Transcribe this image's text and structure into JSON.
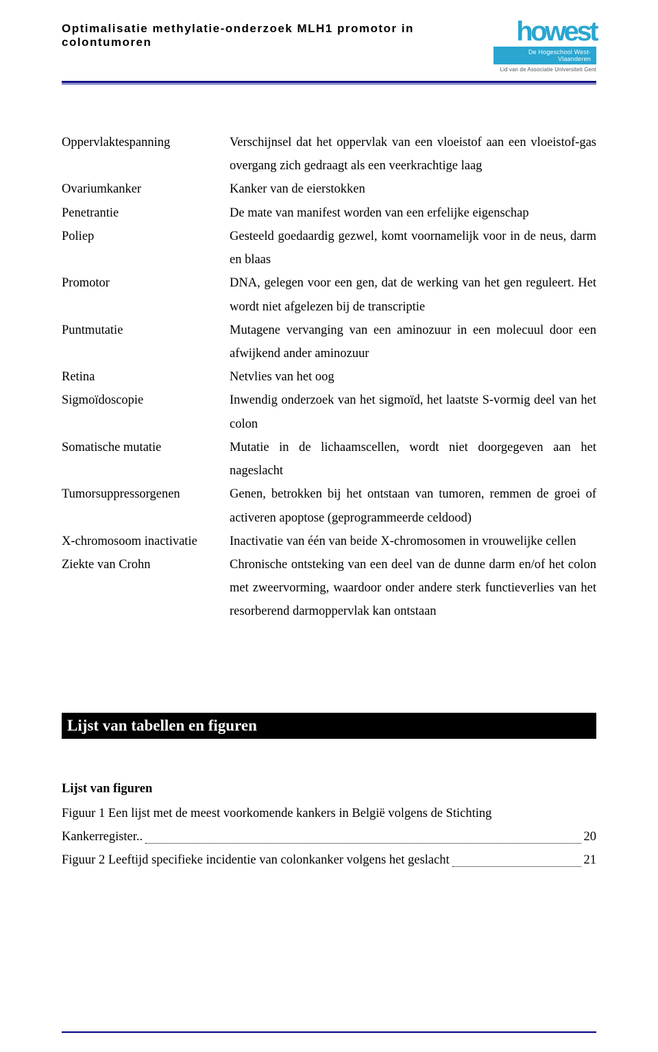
{
  "colors": {
    "logo_blue": "#2aa6d0",
    "rule_navy": "#000080",
    "text": "#000000",
    "bg": "#ffffff",
    "section_bg": "#000000",
    "section_fg": "#ffffff"
  },
  "header": {
    "title": "Optimalisatie methylatie-onderzoek MLH1 promotor in colontumoren",
    "logo_name": "howest",
    "logo_bar": "De Hogeschool West-Vlaanderen",
    "logo_sub": "Lid van de Associatie Universiteit Gent"
  },
  "glossary": [
    {
      "term": "Oppervlaktespanning",
      "def": "Verschijnsel dat het oppervlak van een vloeistof aan een vloeistof-gas overgang zich gedraagt als een veerkrachtige laag"
    },
    {
      "term": "Ovariumkanker",
      "def": "Kanker van de eierstokken"
    },
    {
      "term": "Penetrantie",
      "def": "De mate van manifest worden van een erfelijke eigenschap"
    },
    {
      "term": "Poliep",
      "def": "Gesteeld goedaardig gezwel, komt voornamelijk voor in de neus, darm en blaas"
    },
    {
      "term": "Promotor",
      "def": "DNA, gelegen voor een gen, dat de werking van het gen reguleert. Het wordt niet afgelezen bij de transcriptie"
    },
    {
      "term": "Puntmutatie",
      "def": "Mutagene vervanging van een aminozuur in een molecuul door een afwijkend ander aminozuur"
    },
    {
      "term": "Retina",
      "def": "Netvlies van het oog"
    },
    {
      "term": "Sigmoïdoscopie",
      "def": "Inwendig onderzoek van het sigmoïd, het laatste S-vormig deel van het colon"
    },
    {
      "term": "Somatische mutatie",
      "def": "Mutatie in de lichaamscellen, wordt niet doorgegeven aan het nageslacht"
    },
    {
      "term": "Tumorsuppressorgenen",
      "def": "Genen, betrokken bij het ontstaan van tumoren, remmen de groei of activeren apoptose (geprogrammeerde celdood)"
    },
    {
      "term": "X-chromosoom inactivatie",
      "def": "Inactivatie van één van beide X-chromosomen in vrouwelijke cellen"
    },
    {
      "term": "Ziekte van Crohn",
      "def": "Chronische ontsteking van een deel van de dunne darm en/of het colon met zweervorming, waardoor onder andere sterk functieverlies van het resorberend darmoppervlak kan ontstaan"
    }
  ],
  "section_title": "Lijst van tabellen en figuren",
  "figures": {
    "heading": "Lijst van figuren",
    "items": [
      {
        "text_line1": "Figuur 1 Een lijst met de meest voorkomende kankers in België volgens de Stichting",
        "text_line2": "Kankerregister..",
        "page": "20"
      },
      {
        "text_line1": "Figuur 2 Leeftijd specifieke incidentie van colonkanker volgens het geslacht",
        "text_line2": "",
        "page": "21"
      }
    ]
  }
}
